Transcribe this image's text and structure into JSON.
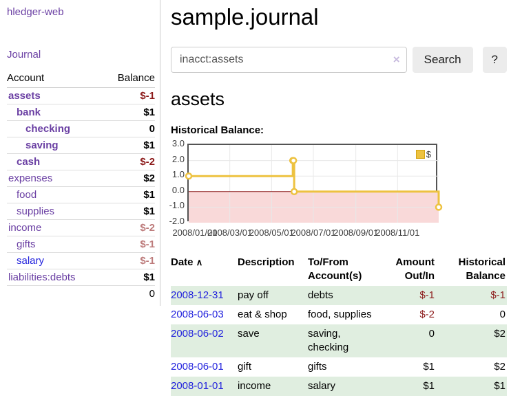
{
  "sidebar": {
    "brand": "hledger-web",
    "journal_link": "Journal",
    "accounts_table": {
      "headers": {
        "account": "Account",
        "balance": "Balance"
      },
      "rows": [
        {
          "name": "assets",
          "balance": "$-1",
          "indent": 1,
          "bold": true,
          "neg": "strong",
          "link": "purple"
        },
        {
          "name": "bank",
          "balance": "$1",
          "indent": 2,
          "bold": true,
          "neg": "none",
          "link": "purple"
        },
        {
          "name": "checking",
          "balance": "0",
          "indent": 3,
          "bold": true,
          "neg": "none",
          "link": "purple"
        },
        {
          "name": "saving",
          "balance": "$1",
          "indent": 3,
          "bold": true,
          "neg": "none",
          "link": "purple"
        },
        {
          "name": "cash",
          "balance": "$-2",
          "indent": 2,
          "bold": true,
          "neg": "strong",
          "link": "purple"
        },
        {
          "name": "expenses",
          "balance": "$2",
          "indent": 1,
          "bold": false,
          "neg": "none",
          "link": "purple"
        },
        {
          "name": "food",
          "balance": "$1",
          "indent": 2,
          "bold": false,
          "neg": "none",
          "link": "purple"
        },
        {
          "name": "supplies",
          "balance": "$1",
          "indent": 2,
          "bold": false,
          "neg": "none",
          "link": "purple"
        },
        {
          "name": "income",
          "balance": "$-2",
          "indent": 1,
          "bold": false,
          "neg": "muted",
          "link": "purple"
        },
        {
          "name": "gifts",
          "balance": "$-1",
          "indent": 2,
          "bold": false,
          "neg": "muted",
          "link": "purple"
        },
        {
          "name": "salary",
          "balance": "$-1",
          "indent": 2,
          "bold": false,
          "neg": "muted",
          "link": "blue"
        },
        {
          "name": "liabilities:debts",
          "balance": "$1",
          "indent": 1,
          "bold": false,
          "neg": "none",
          "link": "purple"
        }
      ],
      "total": "0"
    }
  },
  "main": {
    "title": "sample.journal",
    "search": {
      "value": "inacct:assets",
      "clear_icon": "×",
      "search_button": "Search",
      "help_button": "?"
    },
    "section_heading": "assets",
    "chart_label": "Historical Balance:"
  },
  "chart_data": {
    "type": "line",
    "title": "Historical Balance",
    "steps": true,
    "legend": [
      {
        "name": "$",
        "color": "#edc240",
        "position": "top-right"
      }
    ],
    "series": [
      {
        "name": "$",
        "points": [
          [
            "2008-01-01",
            1
          ],
          [
            "2008-06-01",
            2
          ],
          [
            "2008-06-02",
            2
          ],
          [
            "2008-06-03",
            0
          ],
          [
            "2008-12-31",
            -1
          ]
        ],
        "point_days": [
          0,
          152,
          153,
          154,
          365
        ]
      }
    ],
    "x_ticks": [
      "2008/01/01",
      "2008/03/01",
      "2008/05/01",
      "2008/07/01",
      "2008/09/01",
      "2008/11/01"
    ],
    "x_tick_days": [
      0,
      60,
      121,
      182,
      244,
      305
    ],
    "x_range_days": [
      0,
      365
    ],
    "y_ticks": [
      "3.0",
      "2.0",
      "1.0",
      "0.0",
      "-1.0",
      "-2.0"
    ],
    "y_tick_values": [
      3,
      2,
      1,
      0,
      -1,
      -2
    ],
    "ylim": [
      -2,
      3
    ],
    "grid": true,
    "colors": {
      "line": "#edc240",
      "marker_fill": "#ffffff",
      "negative_region": "#f9d9d9",
      "zero_line": "#8b1a1a",
      "gridline": "#e8e8e8",
      "border": "#545454"
    }
  },
  "transactions": {
    "headers": {
      "date": "Date",
      "sort_icon": "∧",
      "description": "Description",
      "accounts": "To/From Account(s)",
      "amount": "Amount Out/In",
      "balance": "Historical Balance"
    },
    "rows": [
      {
        "date": "2008-12-31",
        "description": "pay off",
        "accounts": "debts",
        "amount": "$-1",
        "amount_neg": true,
        "balance": "$-1",
        "balance_neg": true,
        "green": true
      },
      {
        "date": "2008-06-03",
        "description": "eat & shop",
        "accounts": "food, supplies",
        "amount": "$-2",
        "amount_neg": true,
        "balance": "0",
        "balance_neg": false,
        "green": false
      },
      {
        "date": "2008-06-02",
        "description": "save",
        "accounts": "saving, checking",
        "amount": "0",
        "amount_neg": false,
        "balance": "$2",
        "balance_neg": false,
        "green": true
      },
      {
        "date": "2008-06-01",
        "description": "gift",
        "accounts": "gifts",
        "amount": "$1",
        "amount_neg": false,
        "balance": "$2",
        "balance_neg": false,
        "green": false
      },
      {
        "date": "2008-01-01",
        "description": "income",
        "accounts": "salary",
        "amount": "$1",
        "amount_neg": false,
        "balance": "$1",
        "balance_neg": false,
        "green": true
      }
    ]
  }
}
